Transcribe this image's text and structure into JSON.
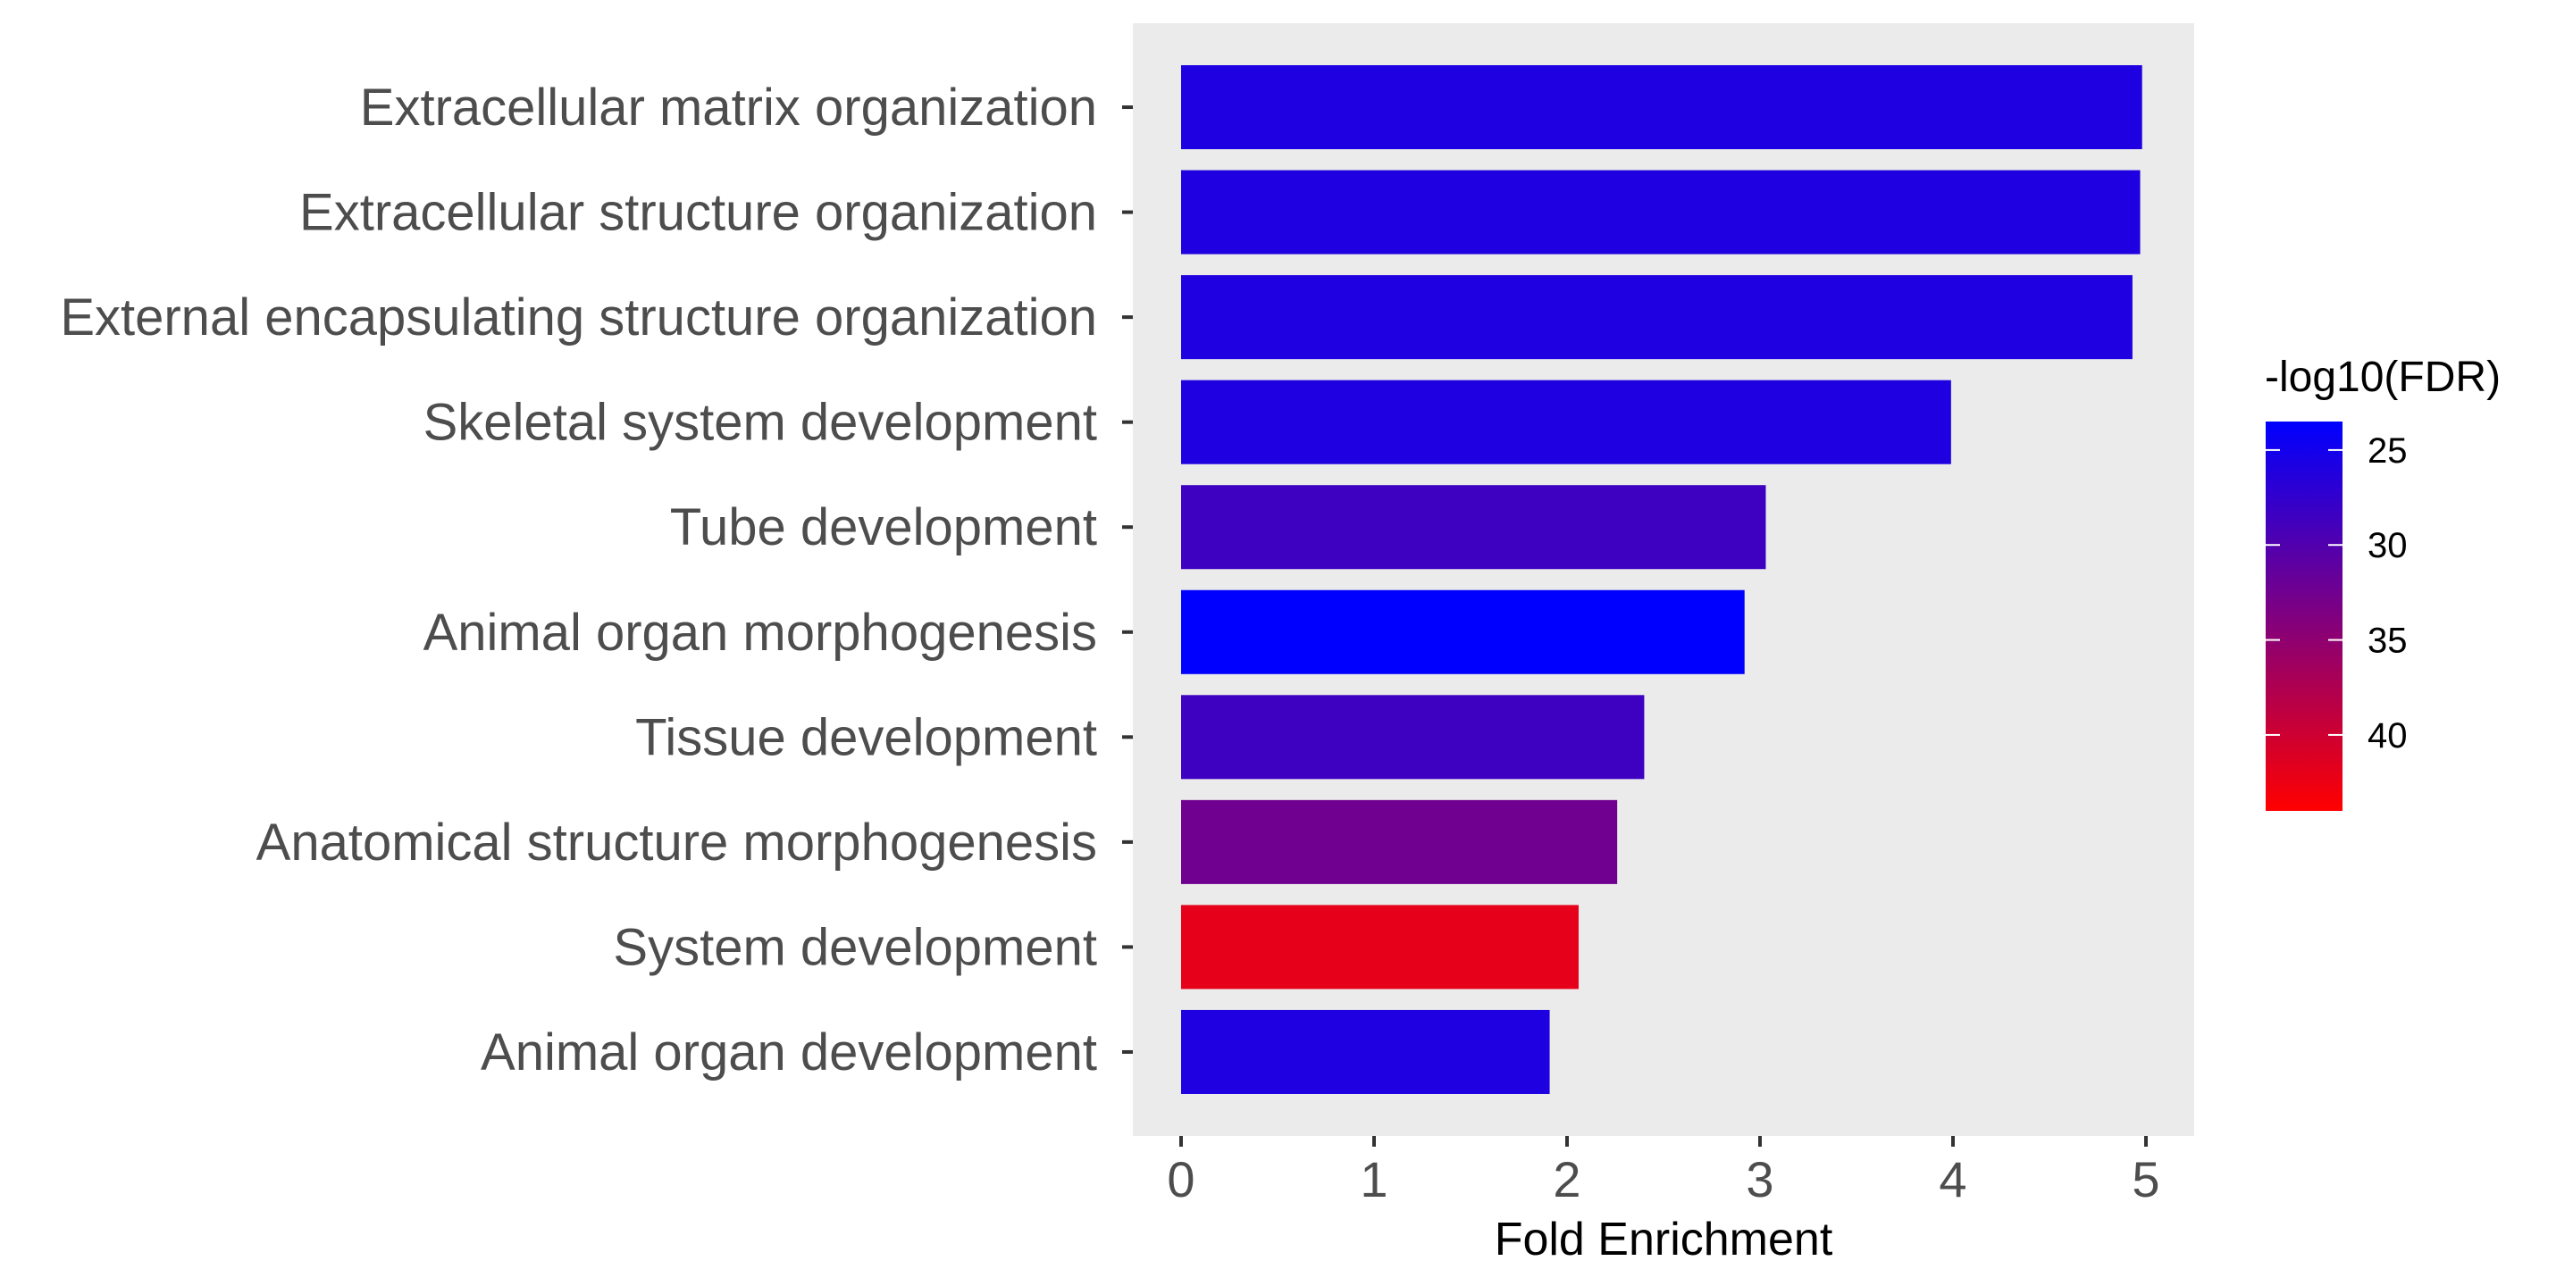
{
  "chart_data": {
    "type": "bar",
    "orientation": "horizontal",
    "categories": [
      "Extracellular matrix organization",
      "Extracellular structure organization",
      "External encapsulating structure organization",
      "Skeletal system development",
      "Tube development",
      "Animal organ morphogenesis",
      "Tissue development",
      "Anatomical structure morphogenesis",
      "System development",
      "Animal organ development"
    ],
    "values": [
      4.98,
      4.97,
      4.93,
      3.99,
      3.03,
      2.92,
      2.4,
      2.26,
      2.06,
      1.91
    ],
    "color_values": [
      26,
      26,
      26,
      26,
      28.5,
      23.5,
      28.5,
      32.5,
      42,
      26
    ],
    "xlabel": "Fold Enrichment",
    "ylabel": "",
    "xlim": [
      -0.25,
      5.25
    ],
    "x_ticks": [
      "0",
      "1",
      "2",
      "3",
      "4",
      "5"
    ],
    "grid": false,
    "panel_background": "#ebebeb",
    "legend": {
      "title": "-log10(FDR)",
      "position": "right",
      "type": "colorbar",
      "range": [
        23.5,
        44
      ],
      "ticks": [
        "25",
        "30",
        "35",
        "40"
      ],
      "low_color": "#0000ff",
      "high_color": "#ff0000"
    }
  }
}
